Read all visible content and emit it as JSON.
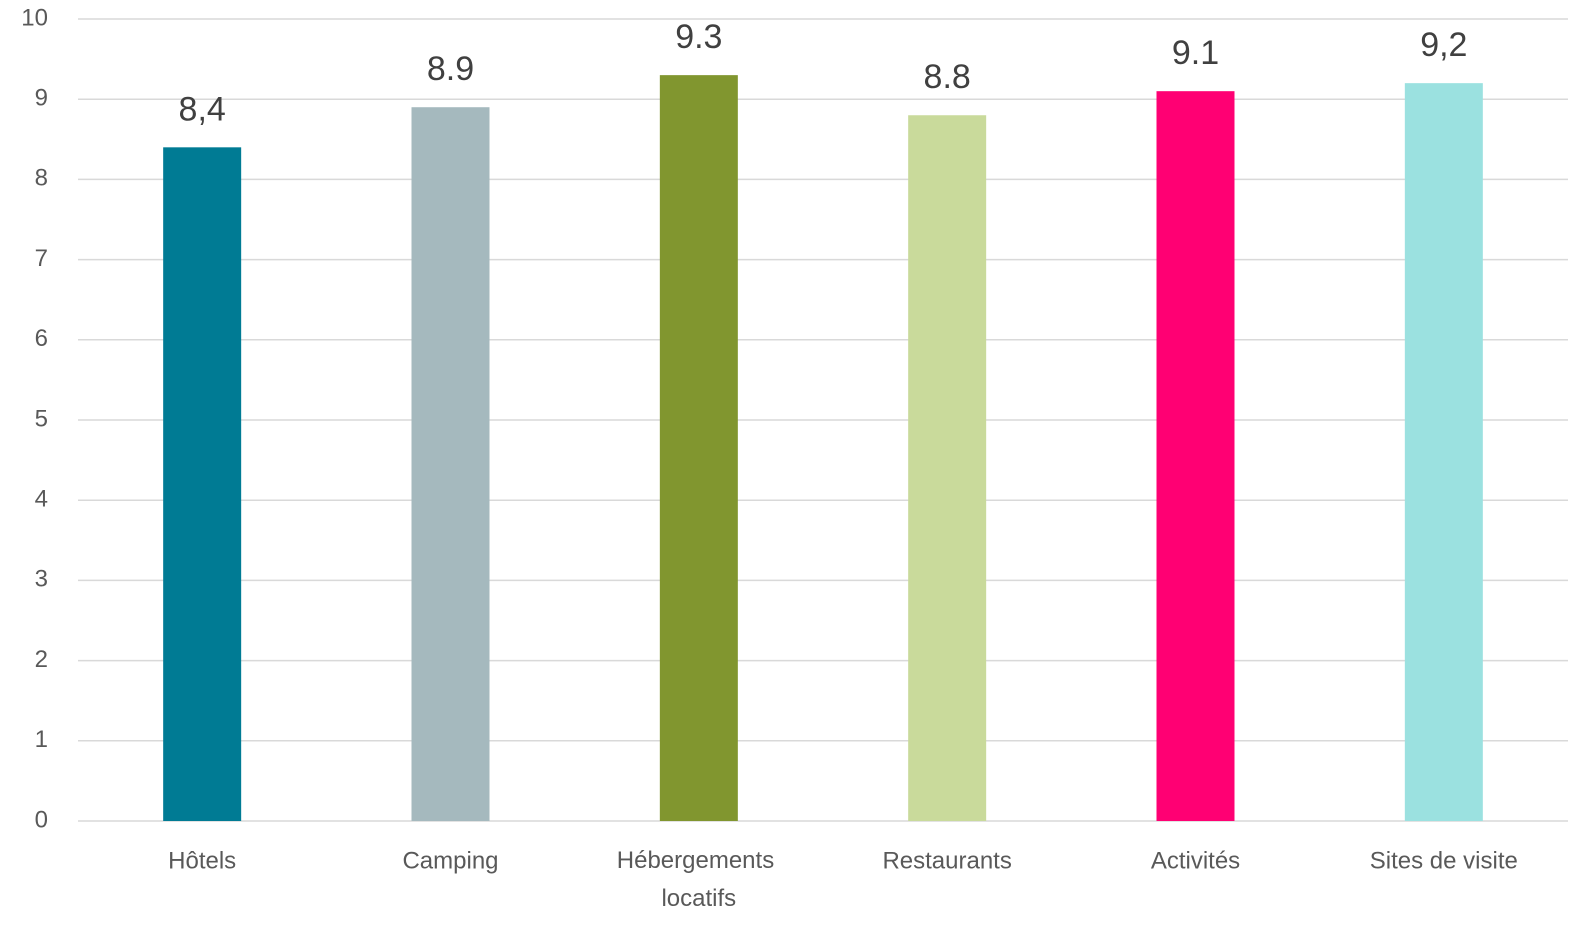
{
  "chart_data": {
    "type": "bar",
    "categories": [
      "Hôtels",
      "Camping",
      "Hébergements locatifs",
      "Restaurants",
      "Activités",
      "Sites de visite"
    ],
    "values": [
      8.4,
      8.9,
      9.3,
      8.8,
      9.1,
      9.2
    ],
    "value_labels": [
      "8,4",
      "8.9",
      "9.3",
      "8.8",
      "9.1",
      "9,2"
    ],
    "colors": [
      "#007b94",
      "#a5b9be",
      "#81962f",
      "#c9da9b",
      "#ff0073",
      "#9be1e0"
    ],
    "ylim": [
      0,
      10
    ],
    "yticks": [
      0,
      1,
      2,
      3,
      4,
      5,
      6,
      7,
      8,
      9,
      10
    ],
    "grid": true
  }
}
